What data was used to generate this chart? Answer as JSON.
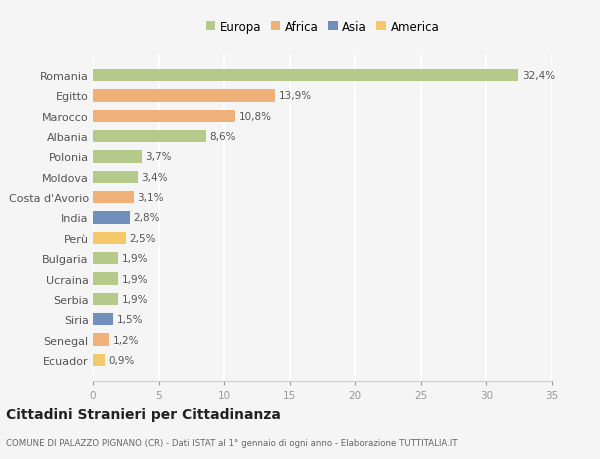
{
  "countries": [
    "Romania",
    "Egitto",
    "Marocco",
    "Albania",
    "Polonia",
    "Moldova",
    "Costa d'Avorio",
    "India",
    "Perù",
    "Bulgaria",
    "Ucraina",
    "Serbia",
    "Siria",
    "Senegal",
    "Ecuador"
  ],
  "values": [
    32.4,
    13.9,
    10.8,
    8.6,
    3.7,
    3.4,
    3.1,
    2.8,
    2.5,
    1.9,
    1.9,
    1.9,
    1.5,
    1.2,
    0.9
  ],
  "labels": [
    "32,4%",
    "13,9%",
    "10,8%",
    "8,6%",
    "3,7%",
    "3,4%",
    "3,1%",
    "2,8%",
    "2,5%",
    "1,9%",
    "1,9%",
    "1,9%",
    "1,5%",
    "1,2%",
    "0,9%"
  ],
  "colors": [
    "#b5c98a",
    "#f0b07a",
    "#f0b07a",
    "#b5c98a",
    "#b5c98a",
    "#b5c98a",
    "#f0b07a",
    "#7090bb",
    "#f5c96a",
    "#b5c98a",
    "#b5c98a",
    "#b5c98a",
    "#7090bb",
    "#f0b07a",
    "#f5c96a"
  ],
  "continent_colors": {
    "Europa": "#b5c98a",
    "Africa": "#f0b07a",
    "Asia": "#7090bb",
    "America": "#f5c96a"
  },
  "legend_labels": [
    "Europa",
    "Africa",
    "Asia",
    "America"
  ],
  "title": "Cittadini Stranieri per Cittadinanza",
  "subtitle": "COMUNE DI PALAZZO PIGNANO (CR) - Dati ISTAT al 1° gennaio di ogni anno - Elaborazione TUTTITALIA.IT",
  "xlim": [
    0,
    35
  ],
  "xticks": [
    0,
    5,
    10,
    15,
    20,
    25,
    30,
    35
  ],
  "background_color": "#f5f5f5",
  "grid_color": "#ffffff",
  "bar_height": 0.6
}
